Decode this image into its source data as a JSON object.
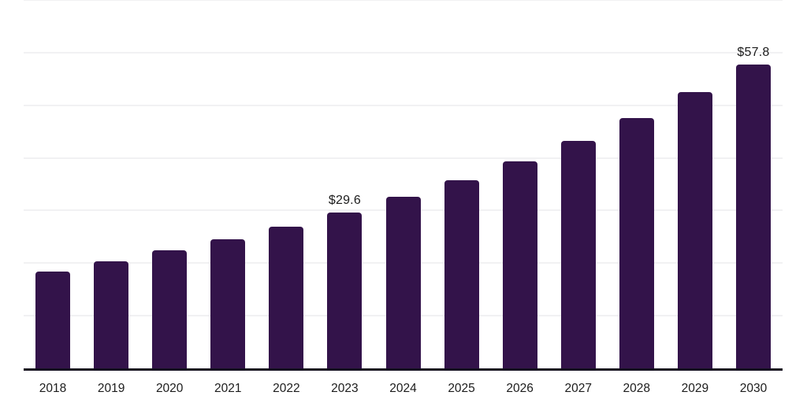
{
  "chart_data": {
    "type": "bar",
    "title": "",
    "xlabel": "",
    "ylabel": "",
    "categories": [
      "2018",
      "2019",
      "2020",
      "2021",
      "2022",
      "2023",
      "2024",
      "2025",
      "2026",
      "2027",
      "2028",
      "2029",
      "2030"
    ],
    "values": [
      18.4,
      20.3,
      22.4,
      24.5,
      26.9,
      29.6,
      32.6,
      35.7,
      39.3,
      43.2,
      47.6,
      52.5,
      57.8
    ],
    "data_labels": {
      "2023": "$29.6",
      "2030": "$57.8"
    },
    "value_prefix": "$",
    "ylim": [
      0,
      70
    ],
    "gridline_step": 10,
    "grid": true,
    "legend": false,
    "y_axis_labels_visible": false,
    "colors": {
      "bar": "#33134A",
      "axis_line": "#151120",
      "gridline": "#F1F1F3",
      "text": "#1C1C1C",
      "background": "#FFFFFF"
    }
  }
}
